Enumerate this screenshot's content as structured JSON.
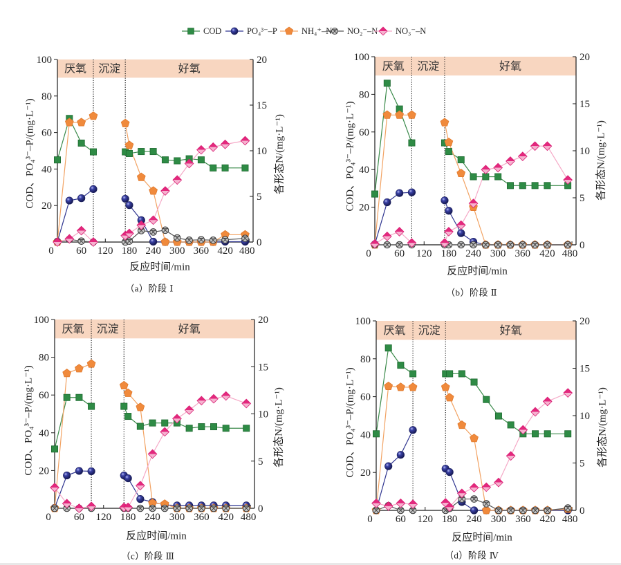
{
  "legend": {
    "position": "top-center",
    "items": [
      {
        "series": "COD",
        "label": "COD"
      },
      {
        "series": "PO4-P",
        "label": "PO₄³⁻–P"
      },
      {
        "series": "NH4-N",
        "label": "NH₄⁺–N"
      },
      {
        "series": "NO2-N",
        "label": "NO₂⁻–N"
      },
      {
        "series": "NO3-N",
        "label": "NO₃⁻–N"
      }
    ]
  },
  "series_styles": [
    {
      "name": "COD",
      "marker": "square",
      "color": "#2E8B45",
      "edge": "#1E6A30",
      "line": "#3A8A4A"
    },
    {
      "name": "PO4-P",
      "marker": "sphere",
      "color": "#2A2F86",
      "edge": "#1B1F5E",
      "line": "#2F3590"
    },
    {
      "name": "NH4-N",
      "marker": "pentagon",
      "color": "#F08A3C",
      "edge": "#E0792C",
      "line": "#F2A262"
    },
    {
      "name": "NO2-N",
      "marker": "crossed-circle",
      "color": "#C4C4C4",
      "edge": "#3E3E3E",
      "line": "#555555"
    },
    {
      "name": "NO3-N",
      "marker": "diamond",
      "color": "#E3287D",
      "color2": "#F6B2CF",
      "edge": "#D81B72",
      "line": "#F5A8C6"
    }
  ],
  "band_color": "#F8D6C0",
  "chart_data": [
    {
      "panel": "a",
      "type": "line",
      "caption": "（a）阶段 Ⅰ",
      "xlabel": "反应时间/min",
      "ylabel_left": "COD、PO₄³⁻–P/(mg·L⁻¹)",
      "ylabel_right": "各形态N/(mg·L⁻¹)",
      "xlim": [
        0,
        490
      ],
      "xticks": [
        0,
        60,
        120,
        180,
        240,
        300,
        360,
        420,
        480
      ],
      "ylim_left": [
        0,
        100
      ],
      "yticks_left": [
        20,
        40,
        60,
        80,
        100
      ],
      "ylim_right": [
        0,
        20
      ],
      "yticks_right": [
        0,
        5,
        10,
        15,
        20
      ],
      "grid": false,
      "phase_band": {
        "from": 90,
        "to": 100,
        "axis": "left"
      },
      "phases": [
        {
          "name": "厌氧",
          "start": 0,
          "end": 90
        },
        {
          "name": "沉淀",
          "start": 90,
          "end": 170
        },
        {
          "name": "好氧",
          "start": 170,
          "end": 490
        }
      ],
      "x": [
        0,
        30,
        60,
        90,
        170,
        180,
        210,
        240,
        270,
        300,
        330,
        360,
        390,
        420,
        470
      ],
      "series": [
        {
          "name": "COD",
          "axis": "left",
          "values": [
            45.0,
            67.7,
            54.2,
            49.4,
            49.4,
            48.5,
            49.6,
            49.6,
            45.0,
            44.5,
            45.6,
            45.0,
            40.6,
            40.6,
            40.6
          ]
        },
        {
          "name": "PO4-P",
          "axis": "left",
          "values": [
            0.2,
            22.7,
            24.0,
            29.0,
            23.7,
            20.2,
            12.0,
            0.2,
            0.0,
            0.0,
            0.0,
            0.0,
            0.0,
            0.2,
            0.2
          ]
        },
        {
          "name": "NH4-N",
          "axis": "right",
          "values": [
            0.0,
            13.1,
            13.1,
            13.8,
            13.0,
            10.6,
            7.1,
            5.6,
            0.0,
            0.0,
            0.0,
            0.0,
            0.0,
            0.8,
            0.8
          ]
        },
        {
          "name": "NO2-N",
          "axis": "right",
          "values": [
            0.0,
            0.3,
            0.1,
            0.0,
            0.0,
            0.1,
            1.25,
            1.1,
            1.3,
            0.45,
            0.2,
            0.25,
            0.2,
            0.25,
            0.4
          ]
        },
        {
          "name": "NO3-N",
          "axis": "right",
          "values": [
            0.0,
            0.35,
            1.25,
            0.0,
            0.7,
            0.95,
            1.85,
            2.4,
            5.6,
            6.8,
            8.6,
            10.1,
            10.4,
            10.7,
            11.1
          ]
        }
      ]
    },
    {
      "panel": "b",
      "type": "line",
      "caption": "（b）阶段 Ⅱ",
      "xlabel": "反应时间/min",
      "ylabel_left": "COD、PO₄³⁻–P/(mg·L⁻¹)",
      "ylabel_right": "各形态N/(mg·L⁻¹)",
      "xlim": [
        0,
        490
      ],
      "xticks": [
        0,
        60,
        120,
        180,
        240,
        300,
        360,
        420,
        480
      ],
      "ylim_left": [
        0,
        100
      ],
      "yticks_left": [
        20,
        40,
        60,
        80,
        100
      ],
      "ylim_right": [
        0,
        20
      ],
      "yticks_right": [
        0,
        5,
        10,
        15,
        20
      ],
      "grid": false,
      "phase_band": {
        "from": 90,
        "to": 100,
        "axis": "left"
      },
      "phases": [
        {
          "name": "厌氧",
          "start": 0,
          "end": 90
        },
        {
          "name": "沉淀",
          "start": 90,
          "end": 170
        },
        {
          "name": "好氧",
          "start": 170,
          "end": 490
        }
      ],
      "x": [
        0,
        30,
        60,
        90,
        170,
        180,
        210,
        240,
        270,
        300,
        330,
        360,
        390,
        420,
        470
      ],
      "series": [
        {
          "name": "COD",
          "axis": "left",
          "values": [
            27.0,
            85.9,
            72.2,
            54.2,
            54.2,
            49.6,
            45.2,
            36.2,
            36.2,
            36.2,
            31.5,
            31.5,
            31.5,
            31.5,
            31.5
          ]
        },
        {
          "name": "PO4-P",
          "axis": "left",
          "values": [
            0.3,
            22.6,
            27.5,
            27.9,
            23.6,
            18.1,
            6.2,
            1.6,
            0.0,
            0.0,
            0.0,
            0.0,
            0.0,
            0.0,
            0.0
          ]
        },
        {
          "name": "NH4-N",
          "axis": "right",
          "values": [
            0.0,
            13.8,
            13.8,
            13.8,
            13.0,
            10.9,
            7.6,
            4.0,
            0.0,
            0.0,
            0.0,
            0.0,
            0.0,
            0.0,
            0.0
          ]
        },
        {
          "name": "NO2-N",
          "axis": "right",
          "values": [
            0.0,
            0.0,
            0.0,
            0.0,
            0.0,
            0.0,
            0.0,
            0.0,
            0.0,
            0.0,
            0.0,
            0.0,
            0.0,
            0.0,
            0.0
          ]
        },
        {
          "name": "NO3-N",
          "axis": "right",
          "values": [
            0.1,
            0.9,
            1.4,
            0.2,
            0.2,
            1.4,
            2.1,
            4.4,
            8.0,
            8.2,
            8.9,
            9.4,
            10.5,
            10.5,
            6.9
          ]
        }
      ]
    },
    {
      "panel": "c",
      "type": "line",
      "caption": "（c）阶段 Ⅲ",
      "xlabel": "反应时间/min",
      "ylabel_left": "COD、PO₄³⁻–P/(mg·L⁻¹)",
      "ylabel_right": "各形态N/(mg·L⁻¹)",
      "xlim": [
        0,
        490
      ],
      "xticks": [
        0,
        60,
        120,
        180,
        240,
        300,
        360,
        420,
        480
      ],
      "ylim_left": [
        0,
        100
      ],
      "yticks_left": [
        20,
        40,
        60,
        80,
        100
      ],
      "ylim_right": [
        0,
        20
      ],
      "yticks_right": [
        0,
        5,
        10,
        15,
        20
      ],
      "grid": false,
      "phase_band": {
        "from": 90,
        "to": 100,
        "axis": "left"
      },
      "phases": [
        {
          "name": "厌氧",
          "start": 0,
          "end": 90
        },
        {
          "name": "沉淀",
          "start": 90,
          "end": 170
        },
        {
          "name": "好氧",
          "start": 170,
          "end": 490
        }
      ],
      "x": [
        0,
        30,
        60,
        90,
        170,
        180,
        210,
        240,
        270,
        300,
        330,
        360,
        390,
        420,
        470
      ],
      "series": [
        {
          "name": "COD",
          "axis": "left",
          "values": [
            31.4,
            58.7,
            58.7,
            54.0,
            54.0,
            48.7,
            43.4,
            45.2,
            45.2,
            45.2,
            42.4,
            43.2,
            43.2,
            42.4,
            42.4
          ]
        },
        {
          "name": "PO4-P",
          "axis": "left",
          "values": [
            0.2,
            17.4,
            19.8,
            19.6,
            17.4,
            15.9,
            4.9,
            3.3,
            1.8,
            1.5,
            1.5,
            1.5,
            1.5,
            1.5,
            1.5
          ]
        },
        {
          "name": "NH4-N",
          "axis": "right",
          "values": [
            0.0,
            14.3,
            14.8,
            15.3,
            13.0,
            12.2,
            10.7,
            0.55,
            0.45,
            0.0,
            0.0,
            0.0,
            0.0,
            0.0,
            0.0
          ]
        },
        {
          "name": "NO2-N",
          "axis": "right",
          "values": [
            0.0,
            0.0,
            0.0,
            0.0,
            0.0,
            0.0,
            0.0,
            0.0,
            0.0,
            0.0,
            0.0,
            0.0,
            0.0,
            0.0,
            0.0
          ]
        },
        {
          "name": "NO3-N",
          "axis": "right",
          "values": [
            2.2,
            0.5,
            0.0,
            0.2,
            0.1,
            0.1,
            2.4,
            5.75,
            8.1,
            9.5,
            10.4,
            11.4,
            11.6,
            11.9,
            11.1
          ]
        }
      ]
    },
    {
      "panel": "d",
      "type": "line",
      "caption": "（d）阶段 Ⅳ",
      "xlabel": "反应时间/min",
      "ylabel_left": "COD、PO₄³⁻–P/(mg·L⁻¹)",
      "ylabel_right": "各形态N/(mg·L⁻¹)",
      "xlim": [
        0,
        490
      ],
      "xticks": [
        0,
        60,
        120,
        180,
        240,
        300,
        360,
        420,
        480
      ],
      "ylim_left": [
        0,
        100
      ],
      "yticks_left": [
        20,
        40,
        60,
        80,
        100
      ],
      "ylim_right": [
        0,
        20
      ],
      "yticks_right": [
        0,
        5,
        10,
        15,
        20
      ],
      "grid": false,
      "phase_band": {
        "from": 90,
        "to": 100,
        "axis": "left"
      },
      "phases": [
        {
          "name": "厌氧",
          "start": 0,
          "end": 90
        },
        {
          "name": "沉淀",
          "start": 90,
          "end": 170
        },
        {
          "name": "好氧",
          "start": 170,
          "end": 490
        }
      ],
      "x": [
        0,
        30,
        60,
        90,
        170,
        180,
        210,
        240,
        270,
        300,
        330,
        360,
        390,
        420,
        470
      ],
      "series": [
        {
          "name": "COD",
          "axis": "left",
          "values": [
            40.4,
            85.7,
            76.6,
            72.1,
            72.1,
            72.1,
            72.1,
            67.7,
            58.5,
            49.8,
            45.1,
            40.4,
            40.4,
            40.4,
            40.4
          ]
        },
        {
          "name": "PO4-P",
          "axis": "left",
          "values": [
            0.0,
            23.3,
            29.3,
            42.4,
            22.0,
            20.2,
            4.4,
            0.0,
            0.0,
            0.0,
            0.0,
            0.0,
            0.0,
            0.0,
            0.0
          ]
        },
        {
          "name": "NH4-N",
          "axis": "right",
          "values": [
            0.0,
            13.1,
            13.0,
            13.0,
            13.0,
            11.9,
            9.0,
            7.6,
            0.0,
            0.0,
            0.0,
            0.0,
            0.0,
            0.0,
            0.15
          ]
        },
        {
          "name": "NO2-N",
          "axis": "right",
          "values": [
            0.0,
            0.5,
            0.0,
            0.0,
            0.0,
            0.2,
            1.2,
            1.2,
            0.7,
            0.0,
            0.0,
            0.0,
            0.0,
            0.0,
            0.25
          ]
        },
        {
          "name": "NO3-N",
          "axis": "right",
          "values": [
            0.75,
            0.45,
            0.75,
            0.65,
            0.8,
            0.35,
            1.8,
            2.4,
            2.45,
            2.95,
            5.75,
            8.5,
            10.4,
            11.5,
            12.4
          ]
        }
      ]
    }
  ]
}
